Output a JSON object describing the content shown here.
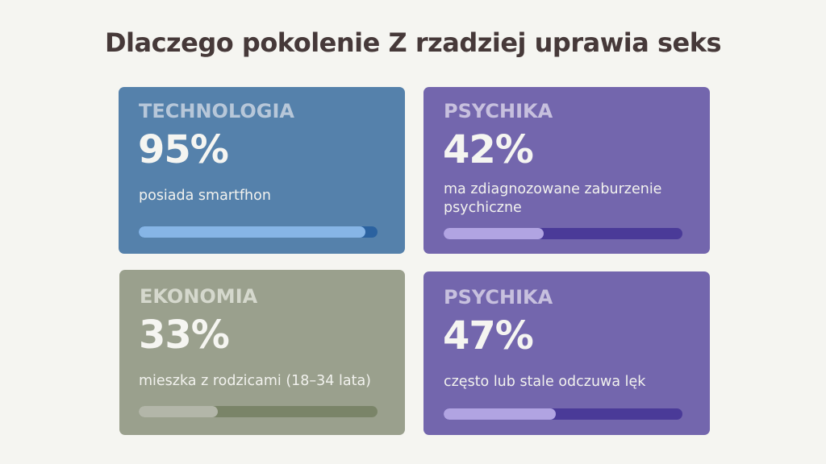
{
  "title": "Dlaczego pokolenie Z rzadziej uprawia seks",
  "cards": [
    {
      "category": "TECHNOLOGIA",
      "value": "95%",
      "percent": 95,
      "description": "posiada smartfhon",
      "colors": {
        "bg": "#5581ab",
        "category": "#b7c7d9",
        "track": "#2b62a0",
        "fill": "#86b5e6"
      }
    },
    {
      "category": "PSYCHIKA",
      "value": "42%",
      "percent": 42,
      "description": "ma zdiagnozowane zaburzenie psychiczne",
      "colors": {
        "bg": "#7366ad",
        "category": "#c7c0de",
        "track": "#4a3a98",
        "fill": "#b1a4e2"
      }
    },
    {
      "category": "EKONOMIA",
      "value": "33%",
      "percent": 33,
      "description": "mieszka z rodzicami (18–34 lata)",
      "colors": {
        "bg": "#9aa08d",
        "category": "#d5d8cd",
        "track": "#7a8468",
        "fill": "#b3b6a9"
      }
    },
    {
      "category": "PSYCHIKA",
      "value": "47%",
      "percent": 47,
      "description": "często lub stale odczuwa lęk",
      "colors": {
        "bg": "#7366ad",
        "category": "#c7c0de",
        "track": "#4a3a98",
        "fill": "#b1a4e2"
      }
    }
  ],
  "chart_data": {
    "type": "bar",
    "title": "Dlaczego pokolenie Z rzadziej uprawia seks",
    "categories": [
      "TECHNOLOGIA: posiada smartfhon",
      "PSYCHIKA: ma zdiagnozowane zaburzenie psychiczne",
      "EKONOMIA: mieszka z rodzicami (18–34 lata)",
      "PSYCHIKA: często lub stale odczuwa lęk"
    ],
    "values": [
      95,
      42,
      33,
      47
    ],
    "ylim": [
      0,
      100
    ]
  }
}
